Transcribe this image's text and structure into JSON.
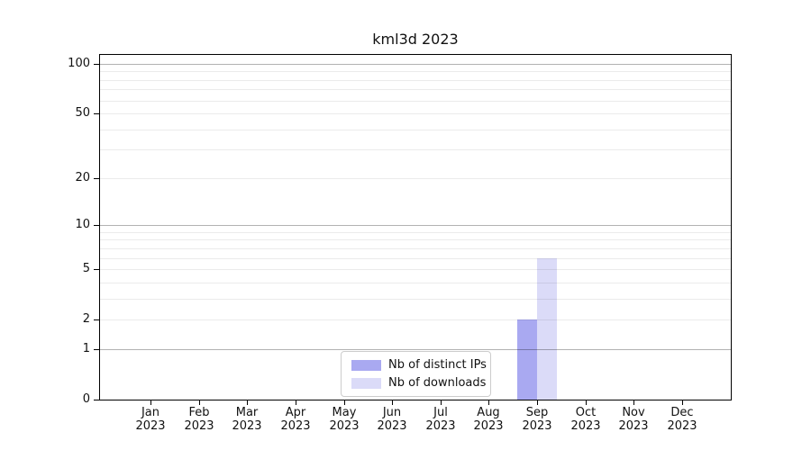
{
  "chart_data": {
    "type": "bar",
    "title": "kml3d 2023",
    "categories": [
      "Jan",
      "Feb",
      "Mar",
      "Apr",
      "May",
      "Jun",
      "Jul",
      "Aug",
      "Sep",
      "Oct",
      "Nov",
      "Dec"
    ],
    "x_sublabel": "2023",
    "series": [
      {
        "name": "Nb of distinct IPs",
        "color": "#a9a9f1",
        "values": [
          0,
          0,
          0,
          0,
          0,
          0,
          0,
          0,
          2,
          0,
          0,
          0
        ]
      },
      {
        "name": "Nb of downloads",
        "color": "#dbdbf8",
        "values": [
          0,
          0,
          0,
          0,
          0,
          0,
          0,
          0,
          6,
          0,
          0,
          0
        ]
      }
    ],
    "yscale": "log1p",
    "ylim": [
      0,
      113
    ],
    "yticks": [
      0,
      1,
      2,
      5,
      10,
      20,
      50,
      100
    ],
    "major_gridlines": [
      1,
      10,
      100
    ],
    "minor_gridlines": [
      2,
      3,
      4,
      5,
      6,
      7,
      8,
      9,
      20,
      30,
      40,
      50,
      60,
      70,
      80,
      90
    ],
    "grid": true,
    "legend_position": "lower center",
    "axis_color": "#000000"
  }
}
